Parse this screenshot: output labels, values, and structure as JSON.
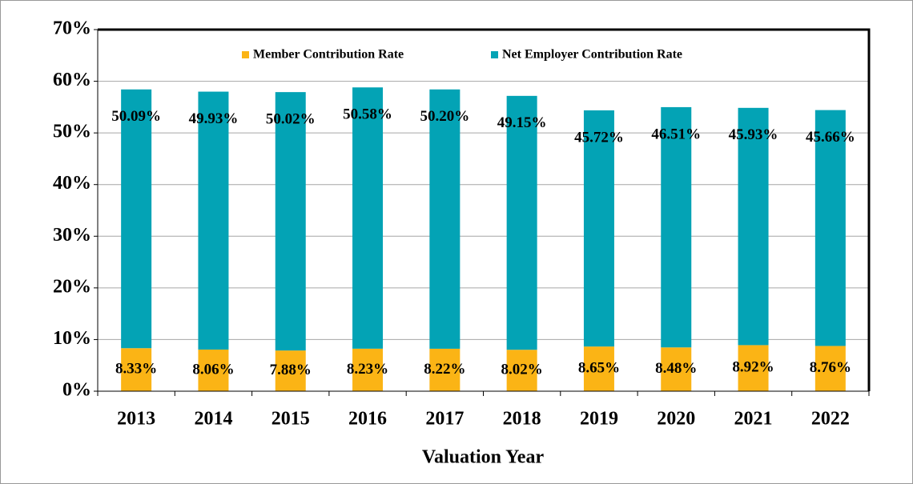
{
  "chart_data": {
    "type": "stacked_bar",
    "x_label": "Valuation Year",
    "categories": [
      "2013",
      "2014",
      "2015",
      "2016",
      "2017",
      "2018",
      "2019",
      "2020",
      "2021",
      "2022"
    ],
    "series": [
      {
        "name": "Member Contribution Rate",
        "color": "#fbb415",
        "values": [
          8.33,
          8.06,
          7.88,
          8.23,
          8.22,
          8.02,
          8.65,
          8.48,
          8.92,
          8.76
        ],
        "value_labels": [
          "8.33%",
          "8.06%",
          "7.88%",
          "8.23%",
          "8.22%",
          "8.02%",
          "8.65%",
          "8.48%",
          "8.92%",
          "8.76%"
        ]
      },
      {
        "name": "Net Employer Contribution Rate",
        "color": "#03a3b5",
        "values": [
          50.09,
          49.93,
          50.02,
          50.58,
          50.2,
          49.15,
          45.72,
          46.51,
          45.93,
          45.66
        ],
        "value_labels": [
          "50.09%",
          "49.93%",
          "50.02%",
          "50.58%",
          "50.20%",
          "49.15%",
          "45.72%",
          "46.51%",
          "45.93%",
          "45.66%"
        ]
      }
    ],
    "ylim": [
      0,
      70
    ],
    "yticks": [
      {
        "value": 0,
        "label": "0%"
      },
      {
        "value": 10,
        "label": "10%"
      },
      {
        "value": 20,
        "label": "20%"
      },
      {
        "value": 30,
        "label": "30%"
      },
      {
        "value": 40,
        "label": "40%"
      },
      {
        "value": 50,
        "label": "50%"
      },
      {
        "value": 60,
        "label": "60%"
      },
      {
        "value": 70,
        "label": "70%"
      }
    ],
    "grid": true,
    "legend": "top"
  }
}
